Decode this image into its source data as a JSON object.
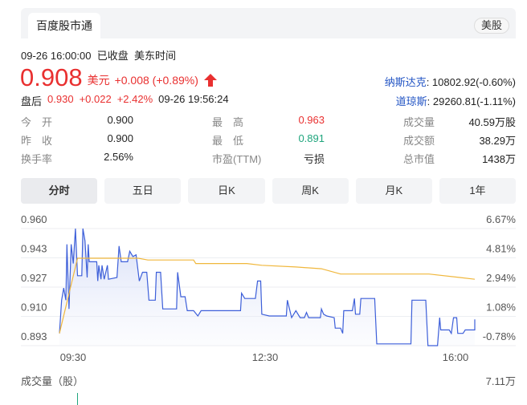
{
  "header": {
    "tab": "百度股市通",
    "market_badge": "美股"
  },
  "status": {
    "datetime": "09-26 16:00:00",
    "state": "已收盘",
    "timezone": "美东时间"
  },
  "quote": {
    "price": "0.908",
    "currency": "美元",
    "change": "+0.008 (+0.89%)",
    "direction_icon": "arrow-up-icon",
    "after_hours_label": "盘后",
    "after_hours_price": "0.930",
    "after_hours_change": "+0.022",
    "after_hours_pct": "+2.42%",
    "after_hours_time": "09-26 19:56:24"
  },
  "indices": [
    {
      "name": "纳斯达克",
      "value": ": 10802.92(-0.60%)"
    },
    {
      "name": "道琼斯",
      "value": ": 29260.81(-1.11%)"
    }
  ],
  "stats": [
    [
      {
        "label": "今　开",
        "value": "0.900"
      },
      {
        "label": "最　高",
        "value": "0.963",
        "color": "#e93030"
      },
      {
        "label": "成交量",
        "value": "40.59万股"
      }
    ],
    [
      {
        "label": "昨　收",
        "value": "0.900"
      },
      {
        "label": "最　低",
        "value": "0.891",
        "color": "#1fa57d"
      },
      {
        "label": "成交额",
        "value": "38.29万"
      }
    ],
    [
      {
        "label": "换手率",
        "value": "2.56%"
      },
      {
        "label": "市盈(TTM)",
        "value": "亏损"
      },
      {
        "label": "总市值",
        "value": "1438万"
      }
    ]
  ],
  "period_tabs": [
    "分时",
    "五日",
    "日K",
    "周K",
    "月K",
    "1年"
  ],
  "active_period": "分时",
  "volume": {
    "label": "成交量（股）",
    "max": "7.11万"
  },
  "colors": {
    "up": "#e93030",
    "down": "#1fa57d",
    "price_line": "#3d5fd9",
    "avg_line": "#f0b73c"
  },
  "chart_data": {
    "type": "line",
    "y_ticks": [
      "0.960",
      "0.943",
      "0.927",
      "0.910",
      "0.893"
    ],
    "y_right_ticks": [
      "6.67%",
      "4.81%",
      "2.94%",
      "1.08%",
      "-0.78%"
    ],
    "x_ticks": [
      "09:30",
      "12:30",
      "16:00"
    ],
    "ylim": [
      0.893,
      0.96
    ],
    "xlim": [
      "09:30",
      "16:00"
    ],
    "grid": true,
    "series": [
      {
        "role": "price",
        "points": [
          [
            "09:30",
            0.9
          ],
          [
            "09:32",
            0.919
          ],
          [
            "09:34",
            0.926
          ],
          [
            "09:36",
            0.919
          ],
          [
            "09:37",
            0.951
          ],
          [
            "09:39",
            0.914
          ],
          [
            "09:41",
            0.951
          ],
          [
            "09:43",
            0.94
          ],
          [
            "09:45",
            0.96
          ],
          [
            "09:47",
            0.933
          ],
          [
            "09:51",
            0.933
          ],
          [
            "09:52",
            0.96
          ],
          [
            "09:54",
            0.953
          ],
          [
            "09:56",
            0.932
          ],
          [
            "09:57",
            0.951
          ],
          [
            "09:58",
            0.941
          ],
          [
            "10:05",
            0.941
          ],
          [
            "10:06",
            0.93
          ],
          [
            "10:07",
            0.939
          ],
          [
            "10:09",
            0.931
          ],
          [
            "10:10",
            0.939
          ],
          [
            "10:12",
            0.931
          ],
          [
            "10:15",
            0.939
          ],
          [
            "10:16",
            0.931
          ],
          [
            "10:24",
            0.932
          ],
          [
            "10:26",
            0.95
          ],
          [
            "10:28",
            0.941
          ],
          [
            "10:34",
            0.941
          ],
          [
            "10:36",
            0.947
          ],
          [
            "10:39",
            0.944
          ],
          [
            "10:42",
            0.945
          ],
          [
            "10:45",
            0.93
          ],
          [
            "10:48",
            0.935
          ],
          [
            "10:52",
            0.935
          ],
          [
            "10:54",
            0.919
          ],
          [
            "11:00",
            0.919
          ],
          [
            "11:01",
            0.935
          ],
          [
            "11:05",
            0.935
          ],
          [
            "11:07",
            0.914
          ],
          [
            "11:20",
            0.914
          ],
          [
            "11:21",
            0.935
          ],
          [
            "11:24",
            0.921
          ],
          [
            "11:28",
            0.921
          ],
          [
            "11:30",
            0.913
          ],
          [
            "11:36",
            0.913
          ],
          [
            "11:40",
            0.91
          ],
          [
            "11:43",
            0.913
          ],
          [
            "12:20",
            0.913
          ],
          [
            "12:21",
            0.923
          ],
          [
            "12:24",
            0.92
          ],
          [
            "12:34",
            0.92
          ],
          [
            "12:36",
            0.93
          ],
          [
            "12:39",
            0.93
          ],
          [
            "12:40",
            0.911
          ],
          [
            "12:47",
            0.91
          ],
          [
            "13:03",
            0.91
          ],
          [
            "13:04",
            0.919
          ],
          [
            "13:08",
            0.909
          ],
          [
            "13:12",
            0.913
          ],
          [
            "13:16",
            0.909
          ],
          [
            "13:20",
            0.909
          ],
          [
            "13:22",
            0.912
          ],
          [
            "13:24",
            0.909
          ],
          [
            "13:35",
            0.909
          ],
          [
            "13:36",
            0.914
          ],
          [
            "13:38",
            0.911
          ],
          [
            "13:41",
            0.91
          ],
          [
            "13:48",
            0.909
          ],
          [
            "13:49",
            0.903
          ],
          [
            "13:54",
            0.903
          ],
          [
            "13:56",
            0.9
          ],
          [
            "13:57",
            0.913
          ],
          [
            "14:05",
            0.913
          ],
          [
            "14:07",
            0.92
          ],
          [
            "14:08",
            0.911
          ],
          [
            "14:12",
            0.911
          ],
          [
            "14:13",
            0.92
          ],
          [
            "14:26",
            0.92
          ],
          [
            "14:28",
            0.894
          ],
          [
            "15:00",
            0.894
          ],
          [
            "15:01",
            0.919
          ],
          [
            "15:14",
            0.919
          ],
          [
            "15:16",
            0.893
          ],
          [
            "15:25",
            0.893
          ],
          [
            "15:27",
            0.909
          ],
          [
            "15:28",
            0.902
          ],
          [
            "15:36",
            0.902
          ],
          [
            "15:38",
            0.9
          ],
          [
            "15:40",
            0.909
          ],
          [
            "15:43",
            0.909
          ],
          [
            "15:44",
            0.9
          ],
          [
            "15:49",
            0.9
          ],
          [
            "15:51",
            0.902
          ],
          [
            "16:00",
            0.902
          ],
          [
            "16:00",
            0.908
          ]
        ]
      },
      {
        "role": "average",
        "points": [
          [
            "09:30",
            0.9
          ],
          [
            "09:47",
            0.943
          ],
          [
            "10:44",
            0.943
          ],
          [
            "10:53",
            0.942
          ],
          [
            "11:36",
            0.942
          ],
          [
            "11:38",
            0.94
          ],
          [
            "12:26",
            0.94
          ],
          [
            "12:40",
            0.939
          ],
          [
            "13:12",
            0.938
          ],
          [
            "13:36",
            0.937
          ],
          [
            "13:54",
            0.934
          ],
          [
            "15:17",
            0.934
          ],
          [
            "15:46",
            0.932
          ],
          [
            "16:00",
            0.931
          ]
        ]
      }
    ]
  }
}
